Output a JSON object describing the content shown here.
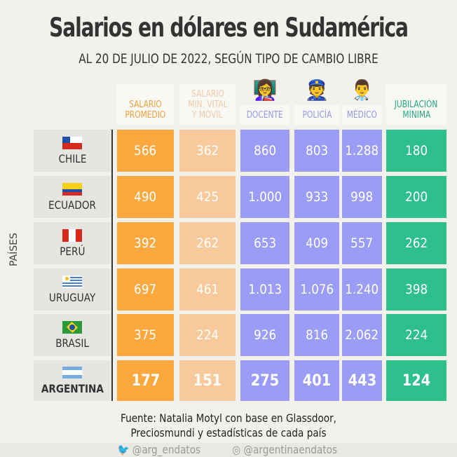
{
  "title": "Salarios en dólares en Sudamérica",
  "subtitle": "AL 20 DE JULIO DE 2022, SEGÚN TIPO DE CAMBIO LIBRE",
  "axis_label": "PAÍSES",
  "source": [
    "Fuente: Natalia Motyl con base en Glassdoor,",
    "Preciosmundi y estadísticas de cada país"
  ],
  "footer": {
    "twitter": "@arg_endatos",
    "instagram": "@argentinaendatos"
  },
  "colors": {
    "orange": "#fba93f",
    "peach": "#f8c99b",
    "purple": "#9a9cf5",
    "green": "#2ec08c"
  },
  "chart_data": {
    "type": "table",
    "title": "Salarios en dólares en Sudamérica",
    "columns": [
      {
        "lines": [
          "SALARIO",
          "PROMEDIO"
        ]
      },
      {
        "lines": [
          "SALARIO",
          "MIN. VITAL",
          "Y MÓVIL"
        ]
      },
      {
        "lines": [
          "DOCENTE"
        ],
        "icon": "teacher-icon"
      },
      {
        "lines": [
          "POLICÍA"
        ],
        "icon": "police-icon"
      },
      {
        "lines": [
          "MÉDICO"
        ],
        "icon": "doctor-icon"
      },
      {
        "lines": [
          "JUBILACIÓN",
          "MÍNIMA"
        ]
      }
    ],
    "rows": [
      {
        "country": "CHILE",
        "values": [
          "566",
          "362",
          "860",
          "803",
          "1.288",
          "180"
        ]
      },
      {
        "country": "ECUADOR",
        "values": [
          "490",
          "425",
          "1.000",
          "933",
          "998",
          "200"
        ]
      },
      {
        "country": "PERÚ",
        "values": [
          "392",
          "262",
          "653",
          "409",
          "557",
          "262"
        ]
      },
      {
        "country": "URUGUAY",
        "values": [
          "697",
          "461",
          "1.013",
          "1.076",
          "1.240",
          "398"
        ]
      },
      {
        "country": "BRASIL",
        "values": [
          "375",
          "224",
          "926",
          "816",
          "2.062",
          "224"
        ]
      },
      {
        "country": "ARGENTINA",
        "values": [
          "177",
          "151",
          "275",
          "401",
          "443",
          "124"
        ]
      }
    ]
  }
}
